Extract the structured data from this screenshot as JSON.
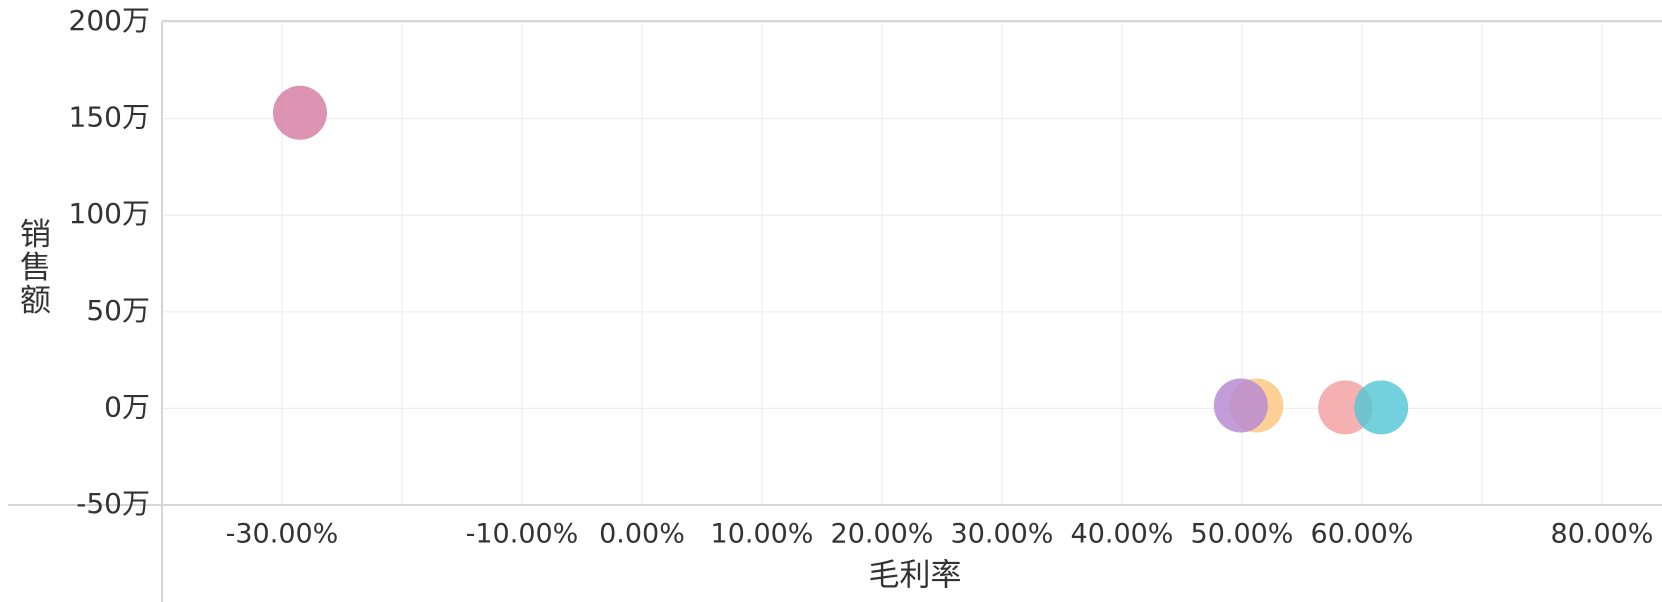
{
  "chart_data": {
    "type": "scatter",
    "xlabel": "毛利率",
    "ylabel": "销售额",
    "xlim": [
      -0.4,
      0.85
    ],
    "ylim": [
      -50,
      200
    ],
    "grid": true,
    "x_ticks": [
      {
        "value": -0.3,
        "label": "-30.00%"
      },
      {
        "value": -0.1,
        "label": "-10.00%"
      },
      {
        "value": 0.0,
        "label": "0.00%"
      },
      {
        "value": 0.1,
        "label": "10.00%"
      },
      {
        "value": 0.2,
        "label": "20.00%"
      },
      {
        "value": 0.3,
        "label": "30.00%"
      },
      {
        "value": 0.4,
        "label": "40.00%"
      },
      {
        "value": 0.5,
        "label": "50.00%"
      },
      {
        "value": 0.6,
        "label": "60.00%"
      },
      {
        "value": 0.8,
        "label": "80.00%"
      }
    ],
    "y_ticks": [
      {
        "value": 200,
        "label": "200万"
      },
      {
        "value": 150,
        "label": "150万"
      },
      {
        "value": 100,
        "label": "100万"
      },
      {
        "value": 50,
        "label": "50万"
      },
      {
        "value": 0,
        "label": "0万"
      },
      {
        "value": -50,
        "label": "-50万"
      }
    ],
    "points": [
      {
        "x": -0.285,
        "y": 153,
        "color": "#d57ca2"
      },
      {
        "x": 0.512,
        "y": 1.5,
        "color": "#fcc77f"
      },
      {
        "x": 0.499,
        "y": 1.5,
        "color": "#b687d3"
      },
      {
        "x": 0.586,
        "y": 0.5,
        "color": "#f39fa0"
      },
      {
        "x": 0.616,
        "y": 0.5,
        "color": "#53c7d5"
      }
    ]
  }
}
